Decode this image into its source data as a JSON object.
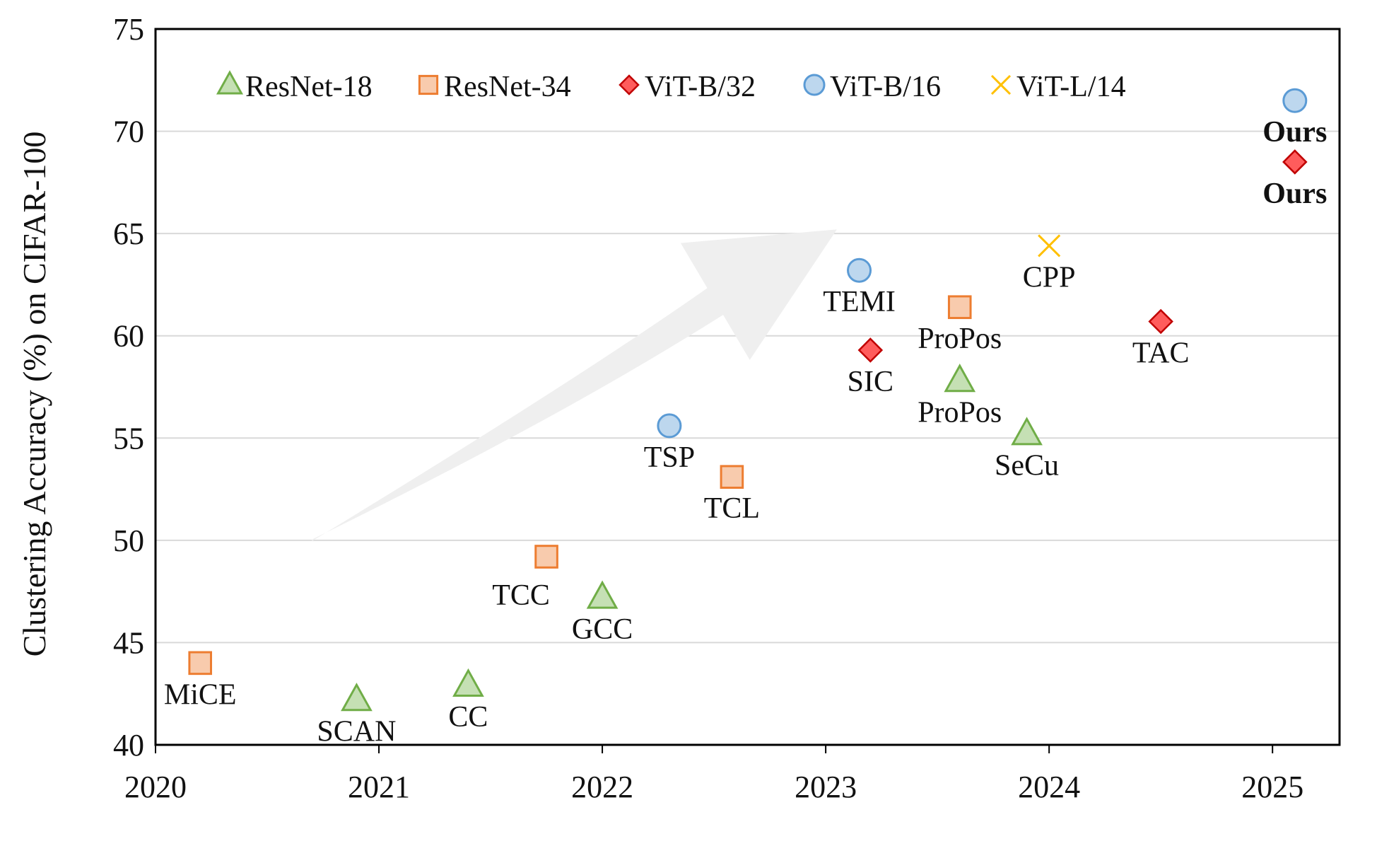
{
  "chart_data": {
    "type": "scatter",
    "title": "",
    "xlabel": "",
    "ylabel": "Clustering Accuracy (%) on CIFAR-100",
    "xlim": [
      2020,
      2025.3
    ],
    "ylim": [
      40,
      75
    ],
    "xticks": [
      "2020",
      "2021",
      "2022",
      "2023",
      "2024",
      "2025"
    ],
    "yticks": [
      "40",
      "45",
      "50",
      "55",
      "60",
      "65",
      "70",
      "75"
    ],
    "grid": "horizontal",
    "legend": "top",
    "colors": {
      "ResNet-18": {
        "fill": "#c5e0b4",
        "stroke": "#70ad47"
      },
      "ResNet-34": {
        "fill": "#f8cbad",
        "stroke": "#ed7d31"
      },
      "ViT-B/32": {
        "fill": "#ff5c5c",
        "stroke": "#c00000"
      },
      "ViT-B/16": {
        "fill": "#bdd7ee",
        "stroke": "#5b9bd5"
      },
      "ViT-L/14": {
        "fill": "none",
        "stroke": "#ffc000"
      },
      "arrow": "#efefef"
    },
    "series": [
      {
        "name": "ResNet-18",
        "marker": "triangle",
        "points": [
          {
            "x": 2020.9,
            "y": 42.2,
            "label": "SCAN",
            "pos": "below"
          },
          {
            "x": 2021.4,
            "y": 42.9,
            "label": "CC",
            "pos": "below"
          },
          {
            "x": 2022.0,
            "y": 47.2,
            "label": "GCC",
            "pos": "below"
          },
          {
            "x": 2023.6,
            "y": 57.8,
            "label": "ProPos",
            "pos": "below"
          },
          {
            "x": 2023.9,
            "y": 55.2,
            "label": "SeCu",
            "pos": "below"
          }
        ]
      },
      {
        "name": "ResNet-34",
        "marker": "square",
        "points": [
          {
            "x": 2020.2,
            "y": 44.0,
            "label": "MiCE",
            "pos": "below"
          },
          {
            "x": 2021.75,
            "y": 49.2,
            "label": "TCC",
            "pos": "below-left"
          },
          {
            "x": 2022.58,
            "y": 53.1,
            "label": "TCL",
            "pos": "below"
          },
          {
            "x": 2023.6,
            "y": 61.4,
            "label": "ProPos",
            "pos": "below"
          }
        ]
      },
      {
        "name": "ViT-B/32",
        "marker": "diamond",
        "points": [
          {
            "x": 2023.2,
            "y": 59.3,
            "label": "SIC",
            "pos": "below"
          },
          {
            "x": 2024.5,
            "y": 60.7,
            "label": "TAC",
            "pos": "below"
          },
          {
            "x": 2025.1,
            "y": 68.5,
            "label": "Ours",
            "pos": "below",
            "bold": true
          }
        ]
      },
      {
        "name": "ViT-B/16",
        "marker": "circle",
        "points": [
          {
            "x": 2022.3,
            "y": 55.6,
            "label": "TSP",
            "pos": "below"
          },
          {
            "x": 2023.15,
            "y": 63.2,
            "label": "TEMI",
            "pos": "below"
          },
          {
            "x": 2025.1,
            "y": 71.5,
            "label": "Ours",
            "pos": "below",
            "bold": true
          }
        ]
      },
      {
        "name": "ViT-L/14",
        "marker": "x",
        "points": [
          {
            "x": 2024.0,
            "y": 64.4,
            "label": "CPP",
            "pos": "below"
          }
        ]
      }
    ],
    "annotations": [
      {
        "type": "trend-arrow",
        "from": {
          "x": 2020.7,
          "y": 50.0
        },
        "to": {
          "x": 2023.05,
          "y": 65.2
        }
      }
    ]
  }
}
